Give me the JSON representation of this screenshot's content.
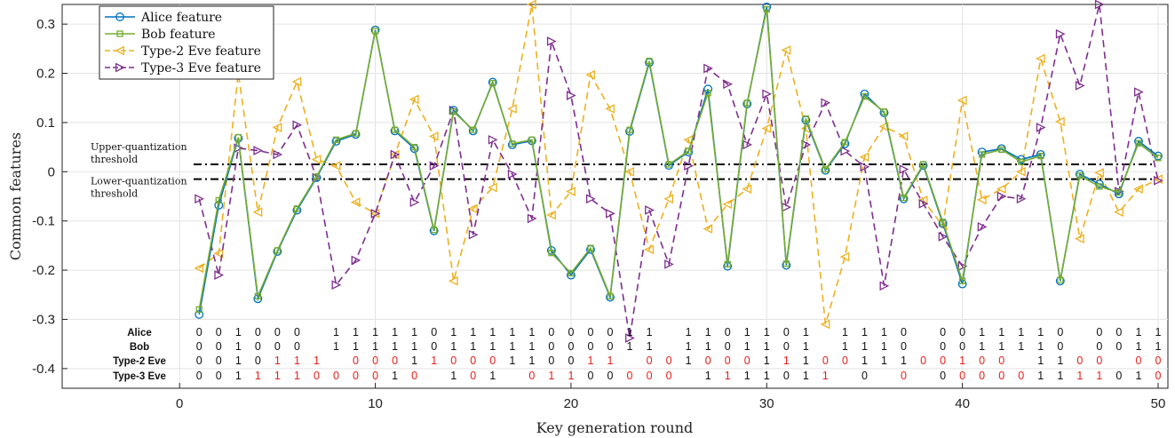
{
  "chart_data": {
    "type": "line",
    "title": "",
    "xlabel": "Key generation round",
    "ylabel": "Common features",
    "xlim": [
      -6,
      50.5
    ],
    "ylim": [
      -0.44,
      0.34
    ],
    "xticks": [
      0,
      10,
      20,
      30,
      40,
      50
    ],
    "yticks": [
      -0.4,
      -0.3,
      -0.2,
      -0.1,
      0,
      0.1,
      0.2,
      0.3
    ],
    "ytick_labels": [
      "-0.4",
      "-0.3",
      "-0.2",
      "-0.1",
      "0",
      "0.1",
      "0.2",
      "0.3"
    ],
    "grid": true,
    "legend_position": "top-left",
    "x": [
      1,
      2,
      3,
      4,
      5,
      6,
      7,
      8,
      9,
      10,
      11,
      12,
      13,
      14,
      15,
      16,
      17,
      18,
      19,
      20,
      21,
      22,
      23,
      24,
      25,
      26,
      27,
      28,
      29,
      30,
      31,
      32,
      33,
      34,
      35,
      36,
      37,
      38,
      39,
      40,
      41,
      42,
      43,
      44,
      45,
      46,
      47,
      48,
      49,
      50
    ],
    "series": [
      {
        "name": "Alice feature",
        "color": "#0072BD",
        "marker": "circle",
        "dash": "solid",
        "values": [
          -0.29,
          -0.068,
          0.068,
          -0.258,
          -0.162,
          -0.078,
          -0.012,
          0.062,
          0.076,
          0.288,
          0.083,
          0.047,
          -0.12,
          0.125,
          0.083,
          0.182,
          0.055,
          0.063,
          -0.16,
          -0.21,
          -0.158,
          -0.255,
          0.082,
          0.222,
          0.013,
          0.04,
          0.168,
          -0.192,
          0.138,
          0.335,
          -0.19,
          0.105,
          0.003,
          0.057,
          0.158,
          0.12,
          -0.055,
          0.013,
          -0.105,
          -0.228,
          0.04,
          0.047,
          0.025,
          0.035,
          -0.222,
          -0.005,
          -0.025,
          -0.045,
          0.062,
          0.032
        ]
      },
      {
        "name": "Bob feature",
        "color": "#77AC30",
        "marker": "square",
        "dash": "solid",
        "values": [
          -0.28,
          -0.058,
          0.07,
          -0.253,
          -0.16,
          -0.075,
          -0.01,
          0.065,
          0.078,
          0.286,
          0.085,
          0.05,
          -0.118,
          0.122,
          0.085,
          0.18,
          0.057,
          0.065,
          -0.165,
          -0.206,
          -0.155,
          -0.253,
          0.085,
          0.225,
          0.015,
          0.042,
          0.16,
          -0.188,
          0.14,
          0.33,
          -0.187,
          0.108,
          0.005,
          0.06,
          0.153,
          0.122,
          -0.053,
          0.015,
          -0.102,
          -0.222,
          0.035,
          0.045,
          0.02,
          0.032,
          -0.22,
          -0.008,
          -0.03,
          -0.042,
          0.058,
          0.028
        ]
      },
      {
        "name": "Type-2 Eve feature",
        "color": "#EDB120",
        "marker": "triangle-left",
        "dash": "dashed",
        "values": [
          -0.196,
          -0.166,
          0.2,
          -0.082,
          0.09,
          0.183,
          0.025,
          0.012,
          -0.062,
          -0.085,
          0.035,
          0.147,
          0.072,
          -0.222,
          -0.075,
          -0.032,
          0.128,
          0.34,
          -0.088,
          -0.04,
          0.197,
          0.128,
          0.0,
          -0.158,
          -0.055,
          0.065,
          -0.116,
          -0.066,
          -0.035,
          0.088,
          0.247,
          0.088,
          -0.31,
          -0.173,
          0.03,
          0.092,
          0.072,
          -0.058,
          -0.11,
          0.145,
          -0.057,
          -0.035,
          0.0,
          0.23,
          0.102,
          -0.136,
          -0.002,
          -0.082,
          -0.035,
          -0.015
        ]
      },
      {
        "name": "Type-3 Eve feature",
        "color": "#7E2F8E",
        "marker": "triangle-right",
        "dash": "dashed",
        "values": [
          -0.055,
          -0.21,
          0.048,
          0.043,
          0.035,
          0.095,
          -0.012,
          -0.23,
          -0.18,
          -0.085,
          0.035,
          -0.062,
          0.012,
          0.125,
          -0.128,
          0.065,
          -0.005,
          -0.095,
          0.265,
          0.155,
          -0.055,
          -0.085,
          -0.338,
          -0.078,
          -0.188,
          0.012,
          0.21,
          0.178,
          0.055,
          0.158,
          -0.072,
          0.055,
          0.14,
          0.042,
          0.01,
          -0.232,
          0.005,
          -0.065,
          -0.132,
          -0.192,
          -0.112,
          -0.05,
          -0.055,
          0.09,
          0.28,
          0.175,
          0.34,
          -0.04,
          0.162,
          -0.018
        ]
      }
    ],
    "reference_lines": [
      {
        "y": 0.015,
        "style": "dash-dot",
        "label": "Upper-quantization threshold",
        "label_lines": [
          "Upper-quantization",
          "threshold"
        ]
      },
      {
        "y": -0.015,
        "style": "dash-dot",
        "label": "Lower-quantization threshold",
        "label_lines": [
          "Lower-quantization",
          "threshold"
        ]
      }
    ],
    "bit_rows": [
      {
        "label": "Alice",
        "bits": [
          "0",
          "0",
          "1",
          "0",
          "0",
          "0",
          "",
          "1",
          "1",
          "1",
          "1",
          "1",
          "0",
          "1",
          "1",
          "1",
          "1",
          "1",
          "0",
          "0",
          "0",
          "0",
          "1",
          "1",
          "",
          "1",
          "1",
          "0",
          "1",
          "1",
          "0",
          "1",
          "",
          "1",
          "1",
          "1",
          "0",
          "",
          "0",
          "0",
          "1",
          "1",
          "1",
          "1",
          "0",
          "",
          "0",
          "0",
          "1",
          "1"
        ]
      },
      {
        "label": "Bob",
        "bits": [
          "0",
          "0",
          "1",
          "0",
          "0",
          "0",
          "",
          "1",
          "1",
          "1",
          "1",
          "1",
          "0",
          "1",
          "1",
          "1",
          "1",
          "1",
          "0",
          "0",
          "0",
          "0",
          "1",
          "1",
          "",
          "1",
          "1",
          "0",
          "1",
          "1",
          "0",
          "1",
          "",
          "1",
          "1",
          "1",
          "0",
          "",
          "0",
          "0",
          "1",
          "1",
          "1",
          "1",
          "0",
          "",
          "0",
          "0",
          "1",
          "1"
        ]
      },
      {
        "label": "Type-2 Eve",
        "bits": [
          "0",
          "0",
          "1",
          "0",
          "1",
          "1",
          "1",
          "",
          "0",
          "0",
          "0",
          "1",
          "1",
          "0",
          "0",
          "0",
          "1",
          "1",
          "0",
          "0",
          "1",
          "1",
          "",
          "0",
          "0",
          "1",
          "0",
          "0",
          "0",
          "1",
          "1",
          "1",
          "0",
          "0",
          "1",
          "1",
          "1",
          "0",
          "0",
          "1",
          "0",
          "0",
          "",
          "1",
          "1",
          "0",
          "0",
          "",
          "0",
          "0"
        ]
      },
      {
        "label": "Type-3 Eve",
        "bits": [
          "0",
          "0",
          "1",
          "1",
          "1",
          "1",
          "0",
          "0",
          "0",
          "0",
          "1",
          "0",
          "",
          "1",
          "0",
          "1",
          "",
          "0",
          "1",
          "1",
          "0",
          "0",
          "0",
          "0",
          "0",
          "",
          "1",
          "1",
          "1",
          "1",
          "0",
          "1",
          "1",
          "",
          "0",
          "",
          "0",
          "",
          "0",
          "0",
          "0",
          "0",
          "0",
          "1",
          "1",
          "1",
          "1",
          "0",
          "1",
          "0"
        ]
      }
    ],
    "bit_red_mask": [
      [
        0,
        0,
        0,
        0,
        0,
        0,
        0,
        0,
        0,
        0,
        0,
        0,
        0,
        0,
        0,
        0,
        0,
        0,
        0,
        0,
        0,
        0,
        0,
        0,
        0,
        0,
        0,
        0,
        0,
        0,
        0,
        0,
        0,
        0,
        0,
        0,
        0,
        0,
        0,
        0,
        0,
        0,
        0,
        0,
        0,
        0,
        0,
        0,
        0,
        0
      ],
      [
        0,
        0,
        0,
        0,
        0,
        0,
        0,
        0,
        0,
        0,
        0,
        0,
        0,
        0,
        0,
        0,
        0,
        0,
        0,
        0,
        0,
        0,
        0,
        0,
        0,
        0,
        0,
        0,
        0,
        0,
        0,
        0,
        0,
        0,
        0,
        0,
        0,
        0,
        0,
        0,
        0,
        0,
        0,
        0,
        0,
        0,
        0,
        0,
        0,
        0
      ],
      [
        0,
        0,
        0,
        0,
        1,
        1,
        1,
        0,
        1,
        1,
        1,
        0,
        1,
        1,
        1,
        1,
        0,
        0,
        0,
        0,
        1,
        1,
        0,
        1,
        1,
        0,
        1,
        1,
        1,
        0,
        1,
        0,
        1,
        1,
        0,
        0,
        0,
        1,
        1,
        1,
        1,
        1,
        0,
        0,
        0,
        1,
        1,
        0,
        1,
        1
      ],
      [
        0,
        0,
        0,
        1,
        1,
        1,
        1,
        1,
        1,
        1,
        0,
        1,
        0,
        0,
        1,
        0,
        0,
        1,
        1,
        1,
        0,
        0,
        1,
        1,
        1,
        0,
        0,
        1,
        0,
        0,
        0,
        0,
        1,
        0,
        0,
        0,
        1,
        0,
        0,
        1,
        1,
        1,
        1,
        0,
        0,
        1,
        1,
        0,
        0,
        1
      ]
    ]
  }
}
